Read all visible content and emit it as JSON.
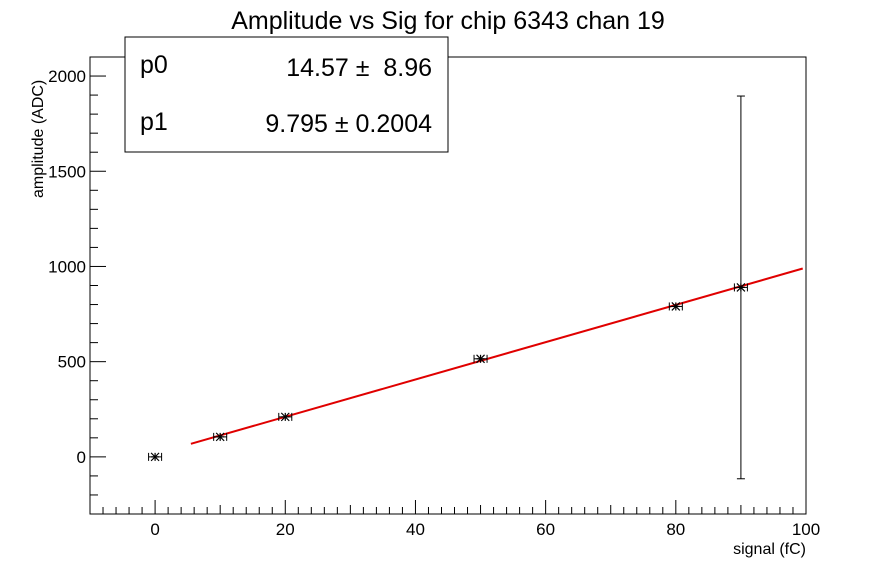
{
  "chart_data": {
    "type": "scatter",
    "title": "Amplitude vs Sig for chip 6343 chan 19",
    "xlabel": "signal (fC)",
    "ylabel": "amplitude (ADC)",
    "xlim": [
      -10,
      100
    ],
    "ylim": [
      -300,
      2100
    ],
    "x_ticks": [
      0,
      20,
      40,
      60,
      80,
      100
    ],
    "y_ticks": [
      0,
      500,
      1000,
      1500,
      2000
    ],
    "grid": false,
    "points": [
      {
        "x": 0,
        "y": 0,
        "xerr": 1,
        "yerr": 0
      },
      {
        "x": 10,
        "y": 105,
        "xerr": 1,
        "yerr": 0
      },
      {
        "x": 20,
        "y": 210,
        "xerr": 1,
        "yerr": 0
      },
      {
        "x": 50,
        "y": 515,
        "xerr": 1,
        "yerr": 0
      },
      {
        "x": 80,
        "y": 790,
        "xerr": 1,
        "yerr": 0
      },
      {
        "x": 90,
        "y": 890,
        "xerr": 1,
        "yerr": 1005
      }
    ],
    "fit": {
      "type": "linear",
      "p0": 14.57,
      "p1": 9.795,
      "x_range": [
        5.5,
        99.5
      ],
      "color": "#e00000"
    },
    "stats_box": {
      "position": "top-left",
      "rows": [
        {
          "name": "p0",
          "value": "14.57 ±  8.96"
        },
        {
          "name": "p1",
          "value": "9.795 ± 0.2004"
        }
      ]
    }
  }
}
